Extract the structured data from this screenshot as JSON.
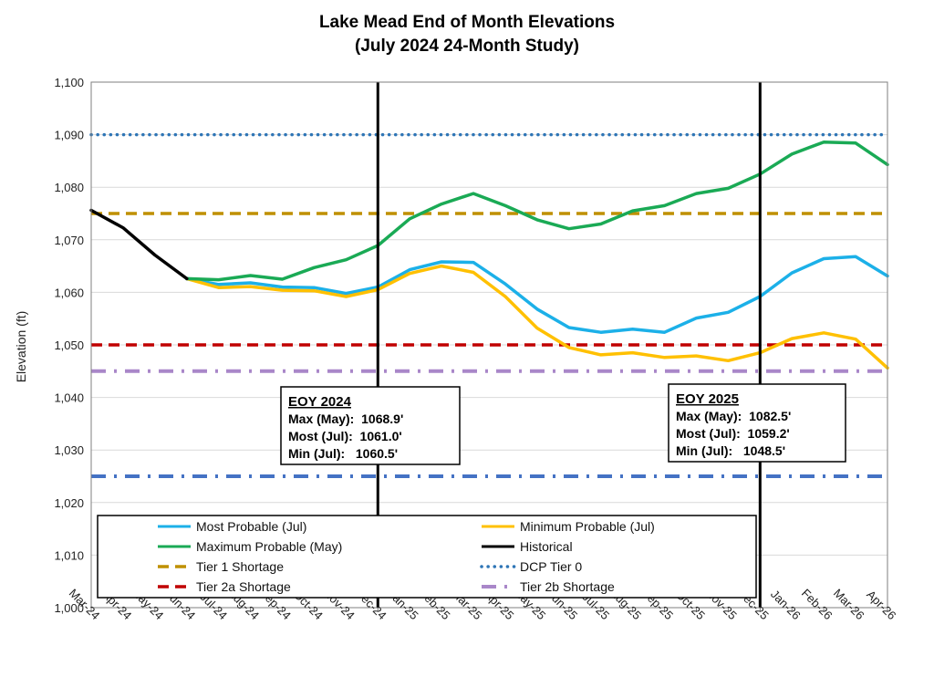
{
  "chart_data": {
    "type": "line",
    "title": "Lake Mead End of Month Elevations",
    "subtitle": "(July 2024 24-Month Study)",
    "ylabel": "Elevation (ft)",
    "ylim": [
      1000,
      1100
    ],
    "yticks": [
      "1,000",
      "1,010",
      "1,020",
      "1,030",
      "1,040",
      "1,050",
      "1,060",
      "1,070",
      "1,080",
      "1,090",
      "1,100"
    ],
    "grid": "horizontal",
    "legend_placement": "bottom",
    "categories": [
      "Mar-24",
      "Apr-24",
      "May-24",
      "Jun-24",
      "Jul-24",
      "Aug-24",
      "Sep-24",
      "Oct-24",
      "Nov-24",
      "Dec-24",
      "Jan-25",
      "Feb-25",
      "Mar-25",
      "Apr-25",
      "May-25",
      "Jun-25",
      "Jul-25",
      "Aug-25",
      "Sep-25",
      "Oct-25",
      "Nov-25",
      "Dec-25",
      "Jan-26",
      "Feb-26",
      "Mar-26",
      "Apr-26"
    ],
    "series": [
      {
        "name": "Most Probable (Jul)",
        "color": "#1CB0E8",
        "style": "solid",
        "values": [
          null,
          null,
          null,
          1062.6,
          1061.5,
          1061.8,
          1061.0,
          1060.9,
          1059.8,
          1061.0,
          1064.3,
          1065.8,
          1065.7,
          1061.6,
          1056.8,
          1053.3,
          1052.4,
          1053.0,
          1052.4,
          1055.1,
          1056.2,
          1059.2,
          1063.7,
          1066.4,
          1066.8,
          1063.1
        ]
      },
      {
        "name": "Minimum Probable (Jul)",
        "color": "#FFC000",
        "style": "solid",
        "values": [
          null,
          null,
          null,
          1062.6,
          1060.9,
          1061.1,
          1060.4,
          1060.3,
          1059.2,
          1060.5,
          1063.6,
          1065.0,
          1063.8,
          1059.2,
          1053.2,
          1049.5,
          1048.1,
          1048.5,
          1047.6,
          1047.9,
          1047.0,
          1048.5,
          1051.2,
          1052.3,
          1051.1,
          1045.6
        ]
      },
      {
        "name": "Maximum Probable (May)",
        "color": "#1AAA55",
        "style": "solid",
        "values": [
          null,
          null,
          null,
          1062.6,
          1062.4,
          1063.2,
          1062.5,
          1064.7,
          1066.2,
          1068.9,
          1074.0,
          1076.8,
          1078.8,
          1076.5,
          1073.8,
          1072.1,
          1073.0,
          1075.5,
          1076.5,
          1078.8,
          1079.8,
          1082.5,
          1086.3,
          1088.6,
          1088.4,
          1084.3
        ]
      },
      {
        "name": "Historical",
        "color": "#000000",
        "style": "solid",
        "values": [
          1075.6,
          1072.3,
          1067.1,
          1062.6,
          null,
          null,
          null,
          null,
          null,
          null,
          null,
          null,
          null,
          null,
          null,
          null,
          null,
          null,
          null,
          null,
          null,
          null,
          null,
          null,
          null,
          null
        ]
      }
    ],
    "thresholds": [
      {
        "name": "Tier 1 Shortage",
        "value": 1075,
        "color": "#BF9000",
        "style": "dash"
      },
      {
        "name": "DCP Tier 0",
        "value": 1090,
        "color": "#2E75B6",
        "style": "dot"
      },
      {
        "name": "Tier 2a Shortage",
        "value": 1050,
        "color": "#C00000",
        "style": "dash"
      },
      {
        "name": "Tier 2b Shortage",
        "value": 1045,
        "color": "#A987C9",
        "style": "dashdot"
      },
      {
        "value": 1025,
        "color": "#4472C4",
        "style": "dashdot"
      }
    ],
    "vertical_markers": [
      "Dec-24",
      "Dec-25"
    ],
    "annotations": [
      {
        "title": "EOY 2024",
        "lines": [
          "Max (May):  1068.9'",
          "Most (Jul):  1061.0'",
          "Min (Jul):   1060.5'"
        ]
      },
      {
        "title": "EOY 2025",
        "lines": [
          "Max (May):  1082.5'",
          "Most (Jul):  1059.2'",
          "Min (Jul):   1048.5'"
        ]
      }
    ]
  }
}
